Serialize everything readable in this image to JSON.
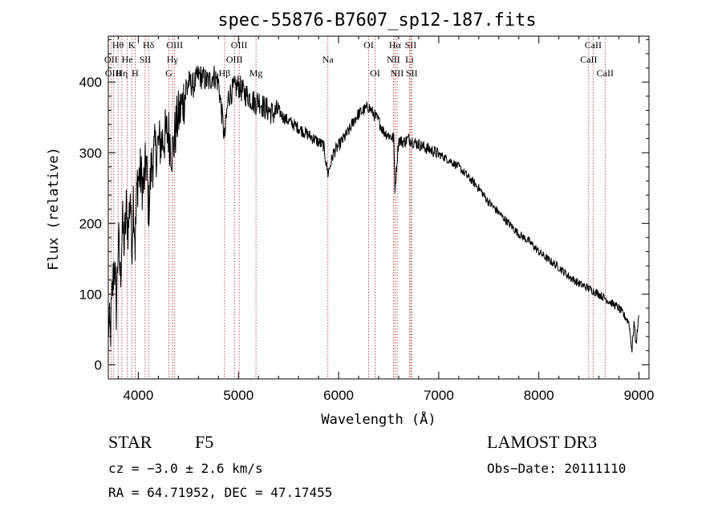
{
  "chart_data": {
    "type": "line",
    "title": "spec-55876-B7607_sp12-187.fits",
    "xlabel": "Wavelength (Å)",
    "ylabel": "Flux (relative)",
    "xlim": [
      3700,
      9100
    ],
    "ylim": [
      -20,
      465
    ],
    "x_ticks": [
      4000,
      5000,
      6000,
      7000,
      8000,
      9000
    ],
    "x_tick_labels": [
      "4000",
      "5000",
      "6000",
      "7000",
      "8000",
      "9000"
    ],
    "y_ticks": [
      0,
      100,
      200,
      300,
      400
    ],
    "y_tick_labels": [
      "0",
      "100",
      "200",
      "300",
      "400"
    ],
    "line_color": "#000000",
    "marker_color": "#b22222",
    "series": [
      {
        "name": "flux",
        "x": [
          3700,
          3720,
          3740,
          3760,
          3780,
          3800,
          3820,
          3840,
          3860,
          3880,
          3900,
          3920,
          3933,
          3950,
          3968,
          3990,
          4020,
          4050,
          4080,
          4102,
          4130,
          4160,
          4200,
          4250,
          4300,
          4340,
          4380,
          4420,
          4460,
          4500,
          4550,
          4600,
          4650,
          4700,
          4750,
          4800,
          4861,
          4900,
          4950,
          5000,
          5050,
          5100,
          5170,
          5200,
          5250,
          5300,
          5350,
          5400,
          5450,
          5500,
          5550,
          5600,
          5650,
          5700,
          5750,
          5800,
          5850,
          5893,
          5950,
          6000,
          6050,
          6100,
          6150,
          6200,
          6250,
          6300,
          6350,
          6400,
          6450,
          6500,
          6550,
          6563,
          6600,
          6650,
          6700,
          6750,
          6800,
          6850,
          6900,
          6950,
          7000,
          7100,
          7200,
          7300,
          7400,
          7500,
          7600,
          7700,
          7800,
          7900,
          8000,
          8100,
          8200,
          8300,
          8400,
          8500,
          8600,
          8700,
          8800,
          8850,
          8900,
          8930,
          8950,
          8970,
          9000
        ],
        "y": [
          60,
          40,
          100,
          150,
          80,
          180,
          120,
          200,
          170,
          220,
          190,
          250,
          160,
          240,
          170,
          260,
          270,
          250,
          290,
          220,
          280,
          300,
          310,
          320,
          330,
          300,
          340,
          360,
          380,
          400,
          395,
          410,
          405,
          400,
          410,
          400,
          320,
          380,
          390,
          395,
          385,
          380,
          370,
          375,
          365,
          360,
          355,
          360,
          350,
          345,
          340,
          335,
          330,
          325,
          320,
          315,
          310,
          270,
          300,
          310,
          320,
          330,
          345,
          355,
          360,
          365,
          355,
          345,
          330,
          325,
          320,
          250,
          318,
          315,
          320,
          315,
          312,
          308,
          305,
          302,
          298,
          290,
          280,
          265,
          250,
          230,
          215,
          200,
          185,
          175,
          160,
          148,
          138,
          125,
          115,
          108,
          100,
          90,
          80,
          70,
          60,
          20,
          60,
          30,
          70
        ]
      }
    ],
    "line_markers": [
      {
        "label": "Hθ",
        "x": 3797,
        "row": 1
      },
      {
        "label": "K",
        "x": 3934,
        "row": 1
      },
      {
        "label": "Hδ",
        "x": 4102,
        "row": 1
      },
      {
        "label": "OIII",
        "x": 4363,
        "row": 1
      },
      {
        "label": "OIII",
        "x": 5007,
        "row": 1
      },
      {
        "label": "OI",
        "x": 6300,
        "row": 1
      },
      {
        "label": "Hα",
        "x": 6563,
        "row": 1
      },
      {
        "label": "SII",
        "x": 6720,
        "row": 1
      },
      {
        "label": "CaII",
        "x": 8542,
        "row": 1
      },
      {
        "label": "OII",
        "x": 3727,
        "row": 2
      },
      {
        "label": "He",
        "x": 3889,
        "row": 2
      },
      {
        "label": "SII",
        "x": 4068,
        "row": 2
      },
      {
        "label": "Hγ",
        "x": 4340,
        "row": 2
      },
      {
        "label": "OIII",
        "x": 4959,
        "row": 2
      },
      {
        "label": "Na",
        "x": 5893,
        "row": 2
      },
      {
        "label": "NII",
        "x": 6548,
        "row": 2
      },
      {
        "label": "Li",
        "x": 6708,
        "row": 2
      },
      {
        "label": "CaII",
        "x": 8498,
        "row": 2
      },
      {
        "label": "OIII",
        "x": 3750,
        "row": 3
      },
      {
        "label": "Hη",
        "x": 3835,
        "row": 3
      },
      {
        "label": "H",
        "x": 3968,
        "row": 3
      },
      {
        "label": "G",
        "x": 4305,
        "row": 3
      },
      {
        "label": "Hβ",
        "x": 4861,
        "row": 3
      },
      {
        "label": "Mg",
        "x": 5175,
        "row": 3
      },
      {
        "label": "OI",
        "x": 6364,
        "row": 3
      },
      {
        "label": "NII",
        "x": 6584,
        "row": 3
      },
      {
        "label": "SII",
        "x": 6731,
        "row": 3
      },
      {
        "label": "CaII",
        "x": 8662,
        "row": 3
      }
    ]
  },
  "info": {
    "object_class": "STAR",
    "subclass": "F5",
    "survey": "LAMOST DR3",
    "cz": "cz = −3.0 ± 2.6 km/s",
    "obs_date": "Obs−Date: 20111110",
    "coords": "RA =  64.71952, DEC =  47.17455"
  }
}
